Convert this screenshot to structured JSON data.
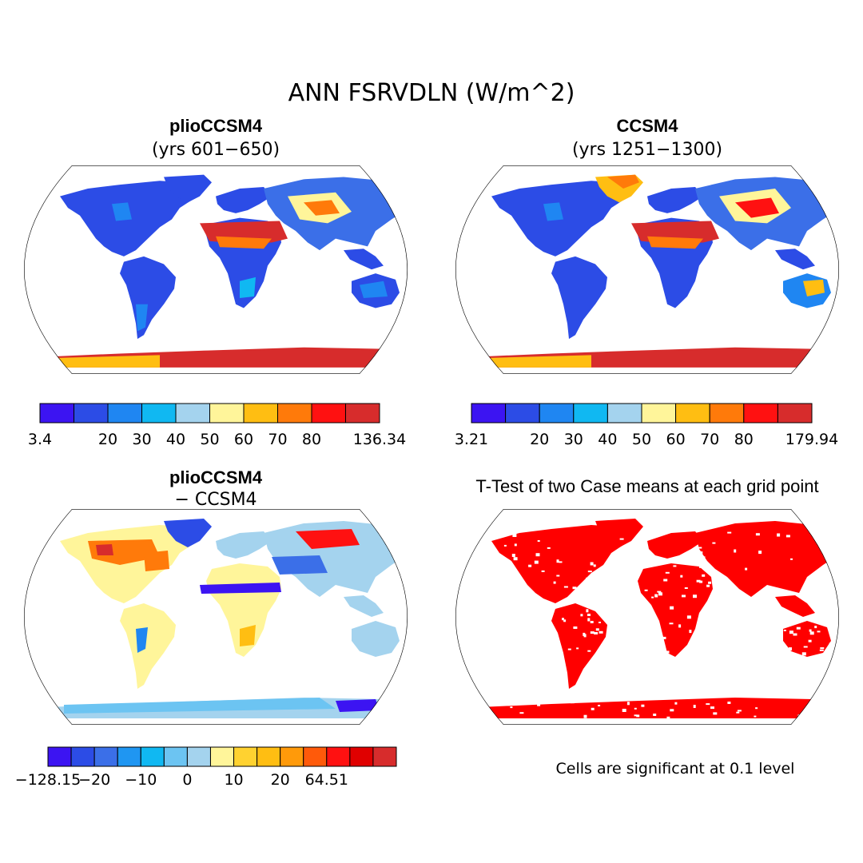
{
  "title": "ANN FSRVDLN (W/m^2)",
  "panels": {
    "a": {
      "title": "plioCCSM4",
      "subtitle": "(yrs 601−650)"
    },
    "b": {
      "title": "CCSM4",
      "subtitle": "(yrs 1251−1300)"
    },
    "c": {
      "title": "plioCCSM4",
      "subtitle": "− CCSM4"
    },
    "d": {
      "title": "T-Test of two Case means at each grid point",
      "note": "Cells are significant at 0.1 level"
    }
  },
  "colorbars": {
    "a": {
      "colors": [
        "#3c14f2",
        "#2c4ce6",
        "#1f86f2",
        "#10b8f2",
        "#a4d3ee",
        "#fff59a",
        "#ffbe12",
        "#ff7a0a",
        "#ff1111",
        "#d72c2c"
      ],
      "labels": [
        "3.4",
        "",
        "20",
        "30",
        "40",
        "50",
        "60",
        "70",
        "80",
        "",
        "136.34"
      ]
    },
    "b": {
      "colors": [
        "#3c14f2",
        "#2c4ce6",
        "#1f86f2",
        "#10b8f2",
        "#a4d3ee",
        "#fff59a",
        "#ffbe12",
        "#ff7a0a",
        "#ff1111",
        "#d72c2c"
      ],
      "labels": [
        "3.21",
        "",
        "20",
        "30",
        "40",
        "50",
        "60",
        "70",
        "80",
        "",
        "179.94"
      ]
    },
    "c": {
      "colors": [
        "#3c14f2",
        "#2c4ce6",
        "#3b6fe8",
        "#1f96f2",
        "#10b8f2",
        "#6cc4f2",
        "#a4d3ee",
        "#fff59a",
        "#ffd230",
        "#ffbe12",
        "#ff9a0a",
        "#ff5a0a",
        "#ff1111",
        "#e00000",
        "#d72c2c"
      ],
      "labels": [
        "−128.15",
        "",
        "−20",
        "",
        "−10",
        "",
        "0",
        "",
        "10",
        "",
        "20",
        "",
        "64.51"
      ]
    }
  },
  "chart_data": [
    {
      "type": "heatmap",
      "title": "plioCCSM4",
      "subtitle": "(yrs 601−650)",
      "variable": "ANN FSRVDLN (W/m^2)",
      "color_levels": [
        3.4,
        10,
        20,
        30,
        40,
        50,
        60,
        70,
        80,
        100,
        136.34
      ],
      "colorbar_labels": [
        "3.4",
        "20",
        "30",
        "40",
        "50",
        "60",
        "70",
        "80",
        "136.34"
      ]
    },
    {
      "type": "heatmap",
      "title": "CCSM4",
      "subtitle": "(yrs 1251−1300)",
      "variable": "ANN FSRVDLN (W/m^2)",
      "color_levels": [
        3.21,
        10,
        20,
        30,
        40,
        50,
        60,
        70,
        80,
        100,
        179.94
      ],
      "colorbar_labels": [
        "3.21",
        "20",
        "30",
        "40",
        "50",
        "60",
        "70",
        "80",
        "179.94"
      ]
    },
    {
      "type": "heatmap",
      "title": "plioCCSM4 − CCSM4",
      "variable": "ANN FSRVDLN difference (W/m^2)",
      "colorbar_labels": [
        "−128.15",
        "−20",
        "−10",
        "0",
        "10",
        "20",
        "64.51"
      ],
      "range": [
        -128.15,
        64.51
      ]
    },
    {
      "type": "heatmap",
      "title": "T-Test of two Case means at each grid point",
      "note": "Cells are significant at 0.1 level",
      "significance_level": 0.1
    }
  ]
}
